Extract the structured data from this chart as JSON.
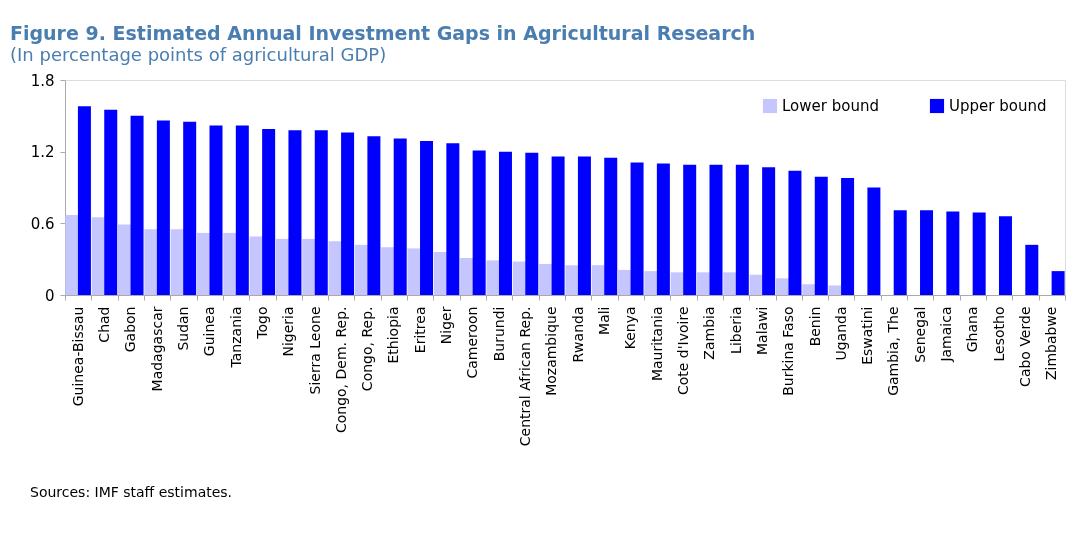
{
  "chart_data": {
    "type": "bar",
    "title": "Figure 9. Estimated Annual Investment Gaps in Agricultural Research",
    "subtitle": "(In percentage points of agricultural GDP)",
    "categories": [
      "Guinea-Bissau",
      "Chad",
      "Gabon",
      "Madagascar",
      "Sudan",
      "Guinea",
      "Tanzania",
      "Togo",
      "Nigeria",
      "Sierra Leone",
      "Congo, Dem. Rep.",
      "Congo, Rep.",
      "Ethiopia",
      "Eritrea",
      "Niger",
      "Cameroon",
      "Burundi",
      "Central African Rep.",
      "Mozambique",
      "Rwanda",
      "Mali",
      "Kenya",
      "Mauritania",
      "Cote d'Ivoire",
      "Zambia",
      "Liberia",
      "Malawi",
      "Burkina Faso",
      "Benin",
      "Uganda",
      "Eswatini",
      "Gambia, The",
      "Senegal",
      "Jamaica",
      "Ghana",
      "Lesotho",
      "Cabo Verde",
      "Zimbabwe"
    ],
    "series": [
      {
        "name": "Lower bound",
        "color": "#c6c6ff",
        "values": [
          0.67,
          0.65,
          0.59,
          0.55,
          0.55,
          0.52,
          0.52,
          0.49,
          0.47,
          0.47,
          0.45,
          0.42,
          0.4,
          0.39,
          0.36,
          0.31,
          0.29,
          0.28,
          0.26,
          0.25,
          0.25,
          0.21,
          0.2,
          0.19,
          0.19,
          0.19,
          0.17,
          0.14,
          0.09,
          0.08,
          null,
          null,
          null,
          null,
          null,
          null,
          null,
          null
        ]
      },
      {
        "name": "Upper bound",
        "color": "#0000ff",
        "values": [
          1.58,
          1.55,
          1.5,
          1.46,
          1.45,
          1.42,
          1.42,
          1.39,
          1.38,
          1.38,
          1.36,
          1.33,
          1.31,
          1.29,
          1.27,
          1.21,
          1.2,
          1.19,
          1.16,
          1.16,
          1.15,
          1.11,
          1.1,
          1.09,
          1.09,
          1.09,
          1.07,
          1.04,
          0.99,
          0.98,
          0.9,
          0.71,
          0.71,
          0.7,
          0.69,
          0.66,
          0.42,
          0.2
        ]
      }
    ],
    "ylim": [
      0,
      1.8
    ],
    "yticks": [
      0,
      0.6,
      1.2,
      1.8
    ],
    "grid": false,
    "legend": "top right",
    "annotations": [
      "Sources: IMF staff estimates."
    ]
  }
}
